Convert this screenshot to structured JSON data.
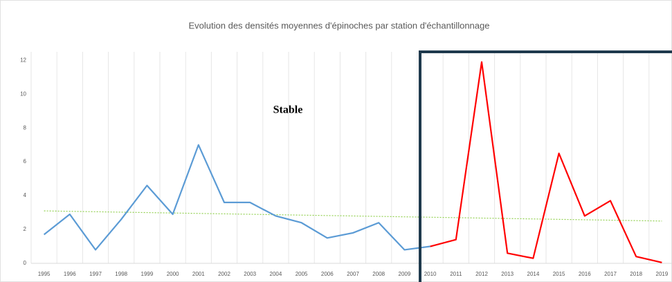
{
  "chart_data": {
    "type": "line",
    "title": "Evolution des densités moyennes d'épinoches par station d'échantillonnage",
    "annotation": "Stable",
    "categories": [
      "1995",
      "1996",
      "1997",
      "1998",
      "1999",
      "2000",
      "2001",
      "2002",
      "2003",
      "2004",
      "2005",
      "2006",
      "2007",
      "2008",
      "2009",
      "2010",
      "2011",
      "2012",
      "2013",
      "2014",
      "2015",
      "2016",
      "2017",
      "2018",
      "2019"
    ],
    "series": [
      {
        "color": "#5b9bd5",
        "values": [
          1.7,
          2.9,
          0.8,
          2.6,
          4.6,
          2.9,
          7.0,
          3.6,
          3.6,
          2.8,
          2.4,
          1.5,
          1.8,
          2.4,
          0.8,
          1.0,
          null,
          null,
          null,
          null,
          null,
          null,
          null,
          null,
          null
        ]
      },
      {
        "color": "#ff0000",
        "values": [
          null,
          null,
          null,
          null,
          null,
          null,
          null,
          null,
          null,
          null,
          null,
          null,
          null,
          null,
          null,
          1.0,
          1.4,
          11.9,
          0.6,
          0.3,
          6.5,
          2.8,
          3.7,
          0.4,
          0.05
        ]
      }
    ],
    "trendline": {
      "color": "#92d050",
      "values": [
        3.1,
        2.5
      ]
    },
    "ylim": [
      0,
      12.5
    ],
    "yticks": [
      0,
      2,
      4,
      6,
      8,
      10,
      12
    ],
    "grid": "vertical"
  }
}
